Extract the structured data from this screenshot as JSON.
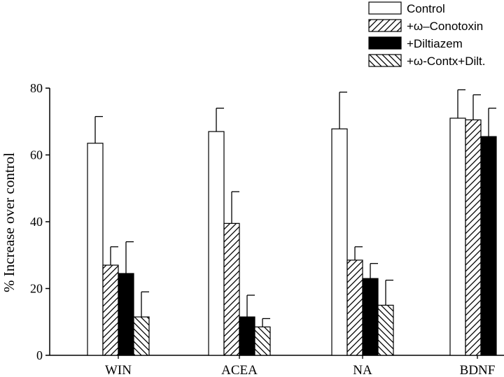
{
  "chart_data": {
    "type": "bar",
    "ylabel": "% Increase over control",
    "ylim": [
      0,
      80
    ],
    "yticks": [
      0,
      20,
      40,
      60,
      80
    ],
    "categories": [
      "WIN",
      "ACEA",
      "NA",
      "BDNF"
    ],
    "legend_position": "top-right",
    "series": [
      {
        "name": "Control",
        "fill": "open",
        "values": [
          63.5,
          67,
          67.8,
          71
        ],
        "errors": [
          8,
          7,
          11,
          8.5
        ]
      },
      {
        "name": "+ω–Conotoxin",
        "fill": "hatch-forward",
        "values": [
          27,
          39.5,
          28.5,
          70.5
        ],
        "errors": [
          5.5,
          9.5,
          4,
          7.5
        ]
      },
      {
        "name": "+Diltiazem",
        "fill": "solid",
        "values": [
          24.5,
          11.5,
          23,
          65.5
        ],
        "errors": [
          9.5,
          6.5,
          4.5,
          8.5
        ]
      },
      {
        "name": "+ω-Contx+Dilt.",
        "fill": "hatch-backward",
        "values": [
          11.5,
          8.5,
          15,
          null
        ],
        "errors": [
          7.5,
          2.5,
          7.5,
          null
        ]
      }
    ]
  }
}
